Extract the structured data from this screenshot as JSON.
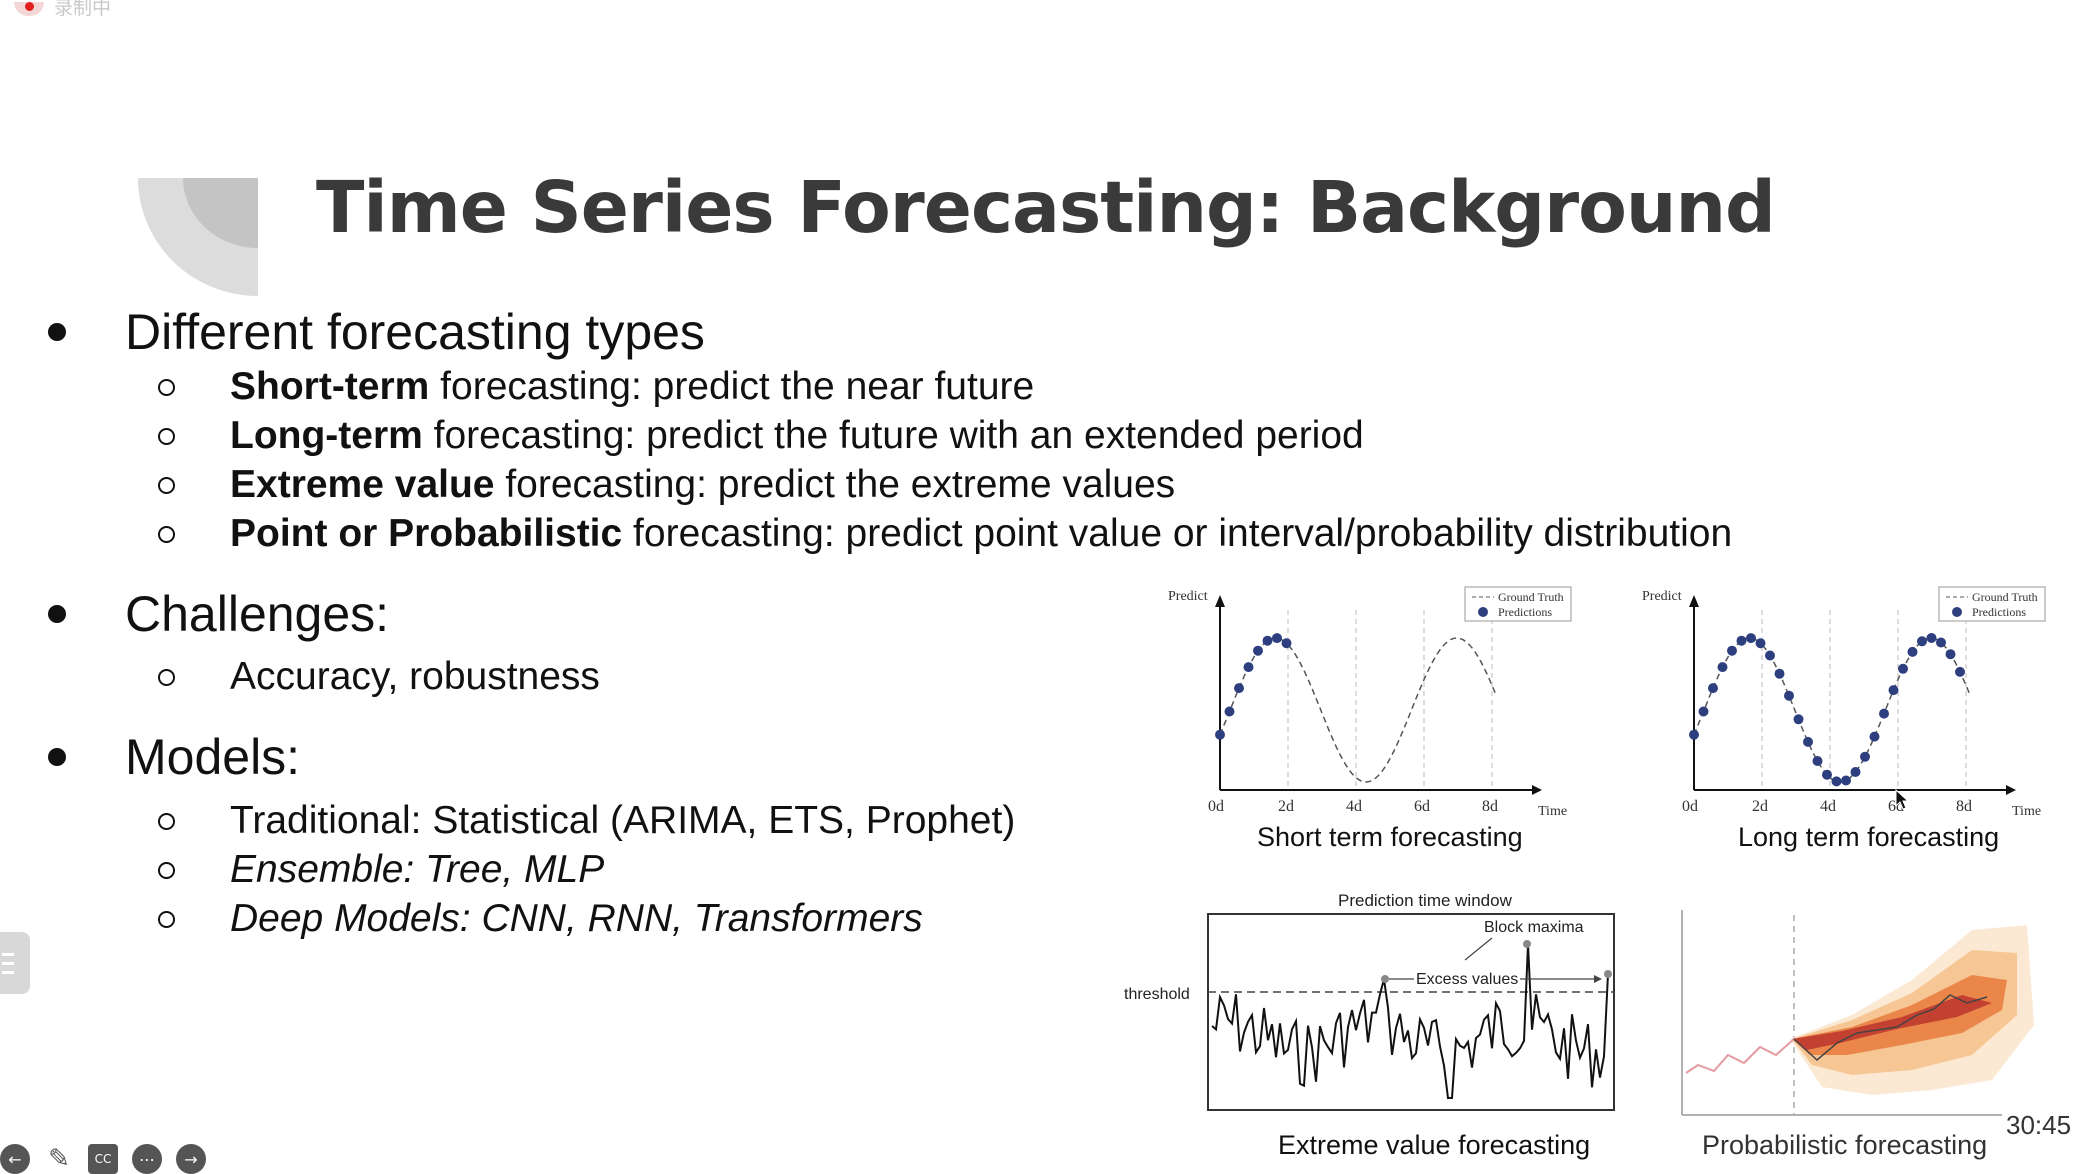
{
  "recording": {
    "label": "录制中"
  },
  "slide": {
    "title": "Time Series Forecasting: Background",
    "bullets": [
      {
        "label": "Different forecasting types",
        "subs": [
          {
            "bold": "Short-term",
            "rest": " forecasting: predict the near future"
          },
          {
            "bold": "Long-term",
            "rest": " forecasting: predict the future with an extended period"
          },
          {
            "bold": "Extreme value",
            "rest": " forecasting: predict the extreme values"
          },
          {
            "bold": "Point or Probabilistic",
            "rest": " forecasting: predict point value or interval/probability distribution"
          }
        ]
      },
      {
        "label": "Challenges:",
        "subs": [
          {
            "text": "Accuracy, robustness"
          }
        ]
      },
      {
        "label": "Models:",
        "subs": [
          {
            "text": "Traditional: Statistical (ARIMA, ETS, Prophet)"
          },
          {
            "text": "Ensemble: Tree, MLP"
          },
          {
            "text": "Deep Models: CNN, RNN, Transformers"
          }
        ]
      }
    ],
    "figures": {
      "short_term": {
        "caption": "Short  term  forecasting",
        "y_label": "Predict",
        "x_label": "Time",
        "x_ticks": [
          "0d",
          "2d",
          "4d",
          "6d",
          "8d"
        ],
        "legend": [
          "Ground Truth",
          "Predictions"
        ]
      },
      "long_term": {
        "caption": "Long  term  forecasting",
        "y_label": "Predict",
        "x_label": "Time",
        "x_ticks": [
          "0d",
          "2d",
          "4d",
          "6d",
          "8d"
        ],
        "legend": [
          "Ground Truth",
          "Predictions"
        ]
      },
      "extreme": {
        "caption": "Extreme value forecasting",
        "window_label": "Prediction time window",
        "threshold_label": "threshold",
        "block_label": "Block maxima",
        "excess_label": "Excess values"
      },
      "probabilistic": {
        "caption": "Probabilistic forecasting"
      }
    },
    "timestamp": "30:45"
  },
  "colors": {
    "title": "#3a3a3a",
    "points": "#2e3f7f",
    "accent": "#d9531e"
  }
}
